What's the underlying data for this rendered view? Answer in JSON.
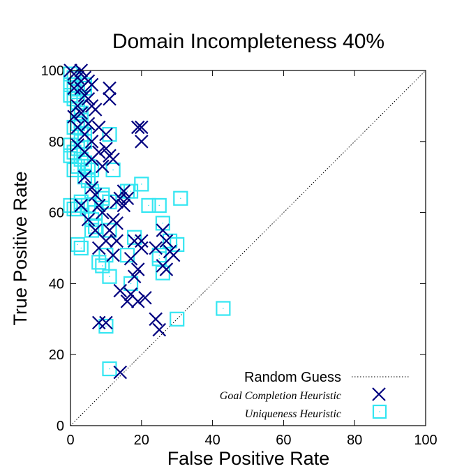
{
  "colors": {
    "goal": "#00007f",
    "uniqueness": "#33e6f2",
    "random": "#000000"
  },
  "chart_data": {
    "type": "scatter",
    "title": "Domain Incompleteness 40%",
    "xlabel": "False Positive Rate",
    "ylabel": "True Positive Rate",
    "xlim": [
      0,
      100
    ],
    "ylim": [
      0,
      100
    ],
    "xticks": [
      0,
      20,
      40,
      60,
      80,
      100
    ],
    "yticks": [
      0,
      20,
      40,
      60,
      80,
      100
    ],
    "grid": false,
    "legend_position": "bottom-right",
    "series": [
      {
        "name": "Random Guess",
        "type": "line",
        "style": "dotted",
        "color": "#000000",
        "points": [
          [
            0,
            0
          ],
          [
            100,
            100
          ]
        ]
      },
      {
        "name": "Goal Completion Heuristic",
        "marker": "x",
        "color": "#00007f",
        "points": [
          [
            0,
            100
          ],
          [
            1,
            99
          ],
          [
            2,
            98
          ],
          [
            3,
            100
          ],
          [
            4,
            98
          ],
          [
            5,
            97
          ],
          [
            6,
            96
          ],
          [
            1,
            95
          ],
          [
            3,
            95
          ],
          [
            4,
            93
          ],
          [
            5,
            92
          ],
          [
            6,
            90
          ],
          [
            2,
            90
          ],
          [
            7,
            89
          ],
          [
            3,
            88
          ],
          [
            1,
            87
          ],
          [
            5,
            85
          ],
          [
            2,
            84
          ],
          [
            8,
            84
          ],
          [
            4,
            82
          ],
          [
            6,
            80
          ],
          [
            10,
            82
          ],
          [
            2,
            79
          ],
          [
            4,
            77
          ],
          [
            8,
            77
          ],
          [
            10,
            78
          ],
          [
            11,
            76
          ],
          [
            6,
            75
          ],
          [
            9,
            73
          ],
          [
            12,
            75
          ],
          [
            11,
            92
          ],
          [
            11,
            95
          ],
          [
            6,
            67
          ],
          [
            4,
            70
          ],
          [
            7,
            65
          ],
          [
            8,
            62
          ],
          [
            9,
            60
          ],
          [
            13,
            63
          ],
          [
            14,
            64
          ],
          [
            15,
            66
          ],
          [
            16,
            64
          ],
          [
            15,
            62
          ],
          [
            12,
            58
          ],
          [
            13,
            57
          ],
          [
            11,
            55
          ],
          [
            10,
            52
          ],
          [
            13,
            52
          ],
          [
            8,
            50
          ],
          [
            12,
            48
          ],
          [
            19,
            84
          ],
          [
            20,
            84
          ],
          [
            20,
            80
          ],
          [
            20,
            52
          ],
          [
            20,
            50
          ],
          [
            17,
            47
          ],
          [
            19,
            44
          ],
          [
            18,
            42
          ],
          [
            14,
            38
          ],
          [
            17,
            37
          ],
          [
            16,
            35
          ],
          [
            19,
            35
          ],
          [
            21,
            36
          ],
          [
            8,
            29
          ],
          [
            10,
            29
          ],
          [
            24,
            30
          ],
          [
            25,
            27
          ],
          [
            26,
            55
          ],
          [
            27,
            52
          ],
          [
            26,
            45
          ],
          [
            27,
            44
          ],
          [
            28,
            49
          ],
          [
            29,
            48
          ],
          [
            14,
            15
          ],
          [
            18,
            52
          ],
          [
            5,
            58
          ],
          [
            3,
            62
          ],
          [
            7,
            55
          ],
          [
            24,
            50
          ]
        ]
      },
      {
        "name": "Uniqueness Heuristic",
        "marker": "square",
        "color": "#33e6f2",
        "points": [
          [
            0,
            99
          ],
          [
            1,
            98
          ],
          [
            0,
            96
          ],
          [
            1,
            95
          ],
          [
            2,
            94
          ],
          [
            4,
            96
          ],
          [
            4,
            95
          ],
          [
            0,
            93
          ],
          [
            1,
            92
          ],
          [
            2,
            91
          ],
          [
            2,
            89
          ],
          [
            3,
            88
          ],
          [
            3,
            86
          ],
          [
            2,
            85
          ],
          [
            1,
            84
          ],
          [
            3,
            84
          ],
          [
            4,
            82
          ],
          [
            3,
            80
          ],
          [
            4,
            80
          ],
          [
            2,
            78
          ],
          [
            0,
            79
          ],
          [
            1,
            77
          ],
          [
            0,
            76
          ],
          [
            3,
            75
          ],
          [
            4,
            74
          ],
          [
            5,
            73
          ],
          [
            2,
            73
          ],
          [
            1,
            72
          ],
          [
            5,
            72
          ],
          [
            6,
            72
          ],
          [
            12,
            72
          ],
          [
            4,
            70
          ],
          [
            5,
            69
          ],
          [
            3,
            63
          ],
          [
            0,
            62
          ],
          [
            1,
            61
          ],
          [
            2,
            61
          ],
          [
            3,
            62
          ],
          [
            5,
            62
          ],
          [
            7,
            60
          ],
          [
            6,
            58
          ],
          [
            7,
            56
          ],
          [
            11,
            55
          ],
          [
            11,
            82
          ],
          [
            6,
            66
          ],
          [
            9,
            64
          ],
          [
            16,
            66
          ],
          [
            11,
            63
          ],
          [
            6,
            55
          ],
          [
            2,
            51
          ],
          [
            3,
            50
          ],
          [
            10,
            48
          ],
          [
            9,
            45
          ],
          [
            11,
            42
          ],
          [
            16,
            48
          ],
          [
            18,
            53
          ],
          [
            17,
            40
          ],
          [
            20,
            68
          ],
          [
            22,
            62
          ],
          [
            25,
            62
          ],
          [
            26,
            57
          ],
          [
            28,
            52
          ],
          [
            30,
            51
          ],
          [
            25,
            48
          ],
          [
            25,
            47
          ],
          [
            26,
            43
          ],
          [
            31,
            64
          ],
          [
            30,
            30
          ],
          [
            10,
            28
          ],
          [
            43,
            33
          ],
          [
            11,
            16
          ],
          [
            17,
            66
          ],
          [
            8,
            46
          ],
          [
            9,
            65
          ]
        ]
      }
    ]
  }
}
